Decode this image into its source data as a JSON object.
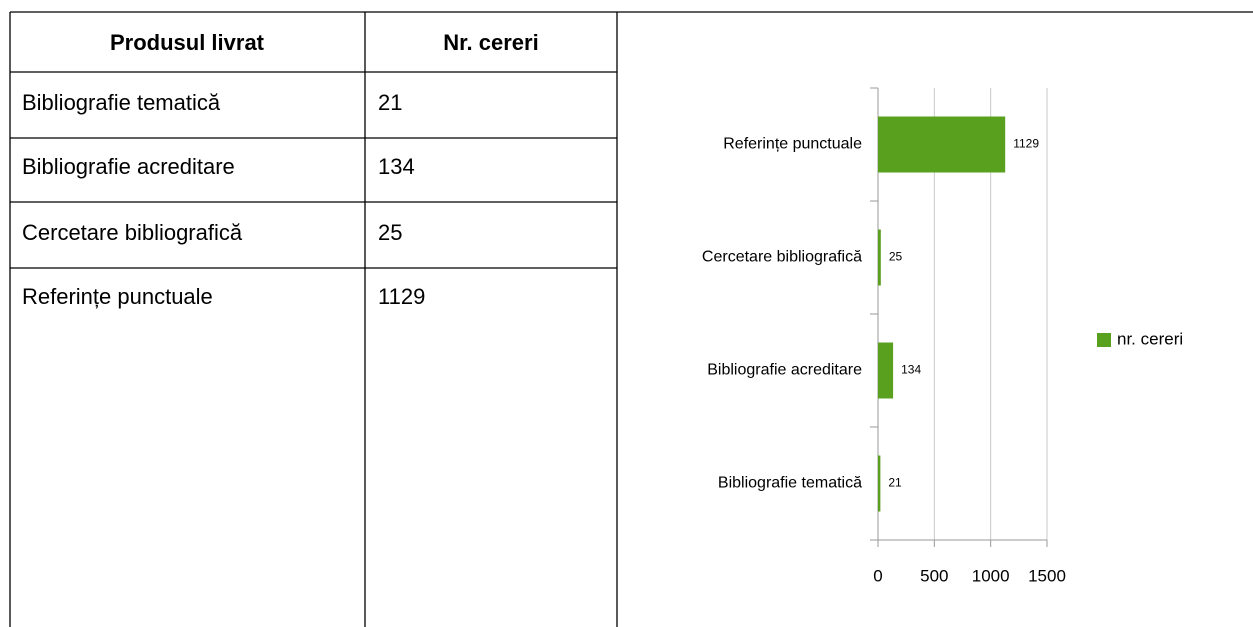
{
  "table": {
    "header": [
      "Produsul livrat",
      "Nr. cereri"
    ],
    "rows": [
      [
        "Bibliografie tematică",
        21
      ],
      [
        "Bibliografie acreditare",
        134
      ],
      [
        "Cercetare bibliografică",
        25
      ],
      [
        "Referințe punctuale",
        1129
      ]
    ]
  },
  "chart_data": {
    "type": "bar",
    "orientation": "horizontal",
    "categories": [
      "Bibliografie tematică",
      "Bibliografie acreditare",
      "Cercetare bibliografică",
      "Referințe punctuale"
    ],
    "series": [
      {
        "name": "nr. cereri",
        "color": "#5aa01f",
        "values": [
          21,
          134,
          25,
          1129
        ]
      }
    ],
    "xlim": [
      0,
      1500
    ],
    "xticks": [
      0,
      500,
      1000,
      1500
    ],
    "grid": true,
    "legend": "right"
  }
}
